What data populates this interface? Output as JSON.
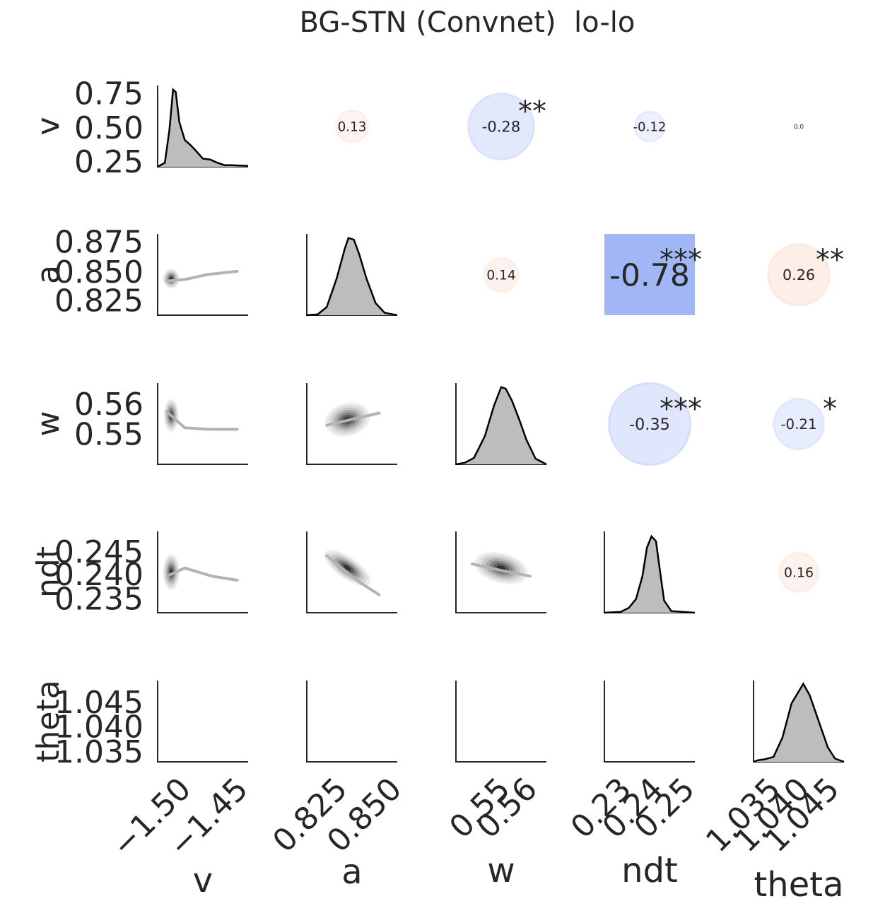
{
  "chart_data": {
    "type": "pairplot",
    "title": "BG-STN (Convnet)  lo-lo",
    "variables": [
      "v",
      "a",
      "w",
      "ndt",
      "theta"
    ],
    "grid": false,
    "diagonal": "kde",
    "lower_triangle": "kde-contour with regression line",
    "upper_triangle": "correlation circles (size and color by correlation)",
    "y_ticks": {
      "v": [
        "0.75",
        "0.50",
        "0.25"
      ],
      "a": [
        "0.875",
        "0.850",
        "0.825"
      ],
      "w": [
        "0.56",
        "0.55"
      ],
      "ndt": [
        "0.245",
        "0.240",
        "0.235"
      ],
      "theta": [
        "1.045",
        "1.040",
        "1.035"
      ]
    },
    "x_ticks": {
      "v": [
        "−1.50",
        "−1.45"
      ],
      "a": [
        "0.825",
        "0.850"
      ],
      "w": [
        "0.55",
        "0.56"
      ],
      "ndt": [
        "0.23",
        "0.24",
        "0.25"
      ],
      "theta": [
        "1.035",
        "1.040",
        "1.045"
      ]
    },
    "correlations": [
      {
        "row": "v",
        "col": "a",
        "r": 0.13,
        "label": "0.13",
        "stars": ""
      },
      {
        "row": "v",
        "col": "w",
        "r": -0.28,
        "label": "-0.28",
        "stars": "**"
      },
      {
        "row": "v",
        "col": "ndt",
        "r": -0.12,
        "label": "-0.12",
        "stars": ""
      },
      {
        "row": "v",
        "col": "theta",
        "r": 0.0,
        "label": "0.0",
        "stars": ""
      },
      {
        "row": "a",
        "col": "w",
        "r": 0.14,
        "label": "0.14",
        "stars": ""
      },
      {
        "row": "a",
        "col": "ndt",
        "r": -0.78,
        "label": "-0.78",
        "stars": "***"
      },
      {
        "row": "a",
        "col": "theta",
        "r": 0.26,
        "label": "0.26",
        "stars": "**"
      },
      {
        "row": "w",
        "col": "ndt",
        "r": -0.35,
        "label": "-0.35",
        "stars": "***"
      },
      {
        "row": "w",
        "col": "theta",
        "r": -0.21,
        "label": "-0.21",
        "stars": "*"
      },
      {
        "row": "ndt",
        "col": "theta",
        "r": 0.16,
        "label": "0.16",
        "stars": ""
      }
    ],
    "colors": {
      "positive": "#f4a582",
      "negative": "#6f8ff0",
      "kde_fill": "#bdbdbd",
      "regression_line": "#b3b3b3",
      "axis": "#262626",
      "text": "#262626"
    }
  }
}
